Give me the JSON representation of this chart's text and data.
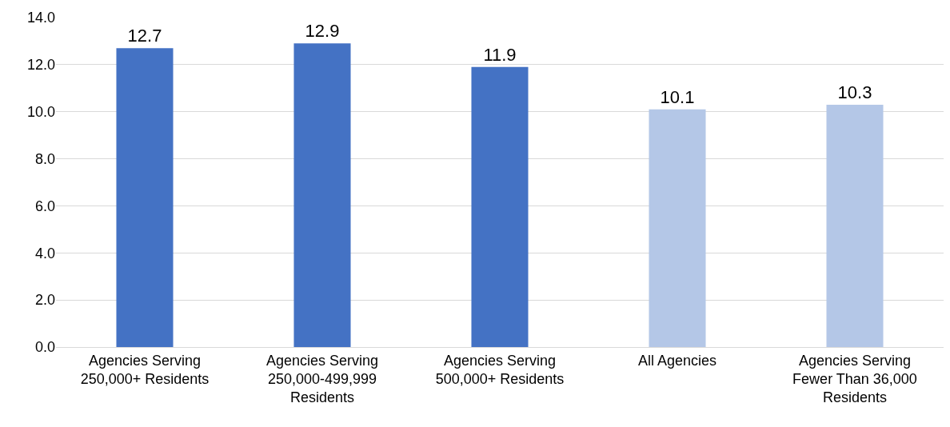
{
  "chart_data": {
    "type": "bar",
    "categories": [
      "Agencies Serving 250,000+ Residents",
      "Agencies Serving 250,000-499,999 Residents",
      "Agencies Serving 500,000+ Residents",
      "All Agencies",
      "Agencies Serving Fewer Than 36,000 Residents"
    ],
    "values": [
      12.7,
      12.9,
      11.9,
      10.1,
      10.3
    ],
    "colors": [
      "#4472c4",
      "#4472c4",
      "#4472c4",
      "#b4c7e7",
      "#b4c7e7"
    ],
    "ylim": [
      0,
      14
    ],
    "yticks": [
      {
        "value": 0,
        "label": "0.0"
      },
      {
        "value": 2,
        "label": "2.0"
      },
      {
        "value": 4,
        "label": "4.0"
      },
      {
        "value": 6,
        "label": "6.0"
      },
      {
        "value": 8,
        "label": "8.0"
      },
      {
        "value": 10,
        "label": "10.0"
      },
      {
        "value": 12,
        "label": "12.0"
      },
      {
        "value": 14,
        "label": "14.0"
      }
    ],
    "grid": "y",
    "data_labels": true
  }
}
